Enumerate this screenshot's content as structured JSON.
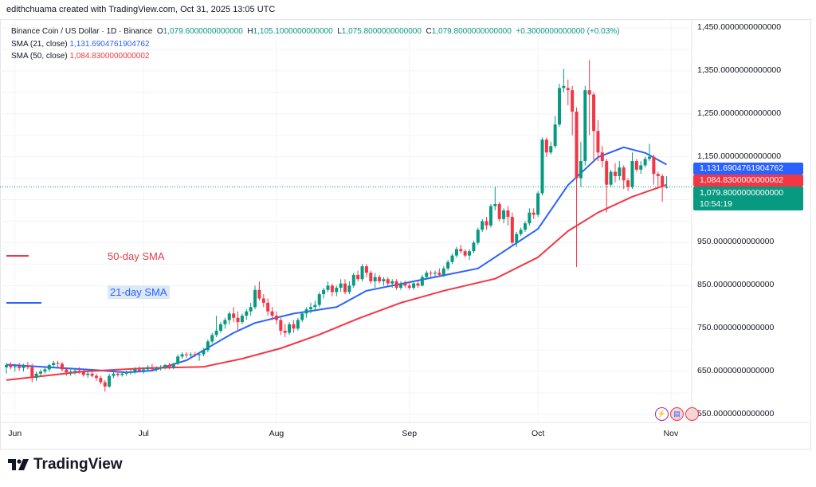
{
  "credit": "edithchuama created with TradingView.com, Oct 31, 2025 13:05 UTC",
  "legend": {
    "symbol": "Binance Coin / US Dollar · 1D · Binance",
    "o_label": "O",
    "o": "1,079.6000000000000",
    "h_label": "H",
    "h": "1,105.1000000000000",
    "l_label": "L",
    "l": "1,075.8000000000000",
    "c_label": "C",
    "c": "1,079.8000000000000",
    "change": "+0.3000000000000 (+0.03%)",
    "sma21_label": "SMA (21, close)",
    "sma21_value": "1,131.6904761904762",
    "sma50_label": "SMA (50, close)",
    "sma50_value": "1,084.8300000000002"
  },
  "annotations": {
    "sma50": "50-day SMA",
    "sma21": "21-day SMA"
  },
  "price_labels": {
    "sma21": "1,131.6904761904762",
    "sma50": "1,084.8300000000002",
    "last": "1,079.8000000000000",
    "countdown": "10:54:19"
  },
  "footer": {
    "brand": "TradingView"
  },
  "colors": {
    "up": "#089981",
    "down": "#f23645",
    "sma21": "#2962ff",
    "sma50": "#f23645"
  },
  "chart_data": {
    "type": "candlestick",
    "ylim": [
      520,
      1480
    ],
    "y_ticks": [
      {
        "v": 1450,
        "label": "1,450.0000000000000"
      },
      {
        "v": 1350,
        "label": "1,350.0000000000000"
      },
      {
        "v": 1250,
        "label": "1,250.0000000000000"
      },
      {
        "v": 1150,
        "label": "1,150.0000000000000"
      },
      {
        "v": 950,
        "label": "950.0000000000000"
      },
      {
        "v": 850,
        "label": "850.0000000000000"
      },
      {
        "v": 750,
        "label": "750.0000000000000"
      },
      {
        "v": 650,
        "label": "650.0000000000000"
      },
      {
        "v": 550,
        "label": "550.0000000000000"
      }
    ],
    "x_ticks": [
      {
        "date": "2025-06-01",
        "label": "Jun"
      },
      {
        "date": "2025-07-01",
        "label": "Jul"
      },
      {
        "date": "2025-08-01",
        "label": "Aug"
      },
      {
        "date": "2025-09-01",
        "label": "Sep"
      },
      {
        "date": "2025-10-01",
        "label": "Oct"
      },
      {
        "date": "2025-11-01",
        "label": "Nov"
      }
    ],
    "start_date": "2025-05-30",
    "ohlc": [
      [
        660,
        670,
        645,
        665
      ],
      [
        665,
        672,
        655,
        660
      ],
      [
        660,
        668,
        650,
        662
      ],
      [
        662,
        670,
        652,
        658
      ],
      [
        658,
        668,
        650,
        664
      ],
      [
        664,
        672,
        655,
        660
      ],
      [
        660,
        668,
        625,
        635
      ],
      [
        635,
        650,
        628,
        645
      ],
      [
        645,
        655,
        640,
        650
      ],
      [
        650,
        660,
        645,
        655
      ],
      [
        655,
        668,
        650,
        665
      ],
      [
        665,
        675,
        658,
        670
      ],
      [
        670,
        675,
        660,
        668
      ],
      [
        668,
        672,
        650,
        655
      ],
      [
        655,
        660,
        640,
        648
      ],
      [
        648,
        655,
        640,
        650
      ],
      [
        650,
        656,
        642,
        652
      ],
      [
        652,
        660,
        645,
        650
      ],
      [
        650,
        655,
        638,
        642
      ],
      [
        642,
        650,
        635,
        645
      ],
      [
        645,
        650,
        636,
        640
      ],
      [
        640,
        645,
        628,
        635
      ],
      [
        635,
        640,
        620,
        625
      ],
      [
        625,
        630,
        603,
        615
      ],
      [
        615,
        645,
        612,
        640
      ],
      [
        640,
        650,
        635,
        645
      ],
      [
        645,
        650,
        638,
        642
      ],
      [
        642,
        648,
        638,
        645
      ],
      [
        645,
        652,
        640,
        648
      ],
      [
        648,
        655,
        642,
        650
      ],
      [
        650,
        660,
        645,
        655
      ],
      [
        655,
        662,
        648,
        652
      ],
      [
        652,
        660,
        645,
        655
      ],
      [
        655,
        665,
        650,
        660
      ],
      [
        660,
        668,
        652,
        655
      ],
      [
        655,
        662,
        650,
        658
      ],
      [
        658,
        665,
        652,
        660
      ],
      [
        660,
        668,
        655,
        665
      ],
      [
        665,
        670,
        655,
        660
      ],
      [
        660,
        670,
        655,
        668
      ],
      [
        668,
        690,
        665,
        685
      ],
      [
        685,
        695,
        680,
        690
      ],
      [
        690,
        695,
        682,
        688
      ],
      [
        688,
        695,
        683,
        690
      ],
      [
        690,
        696,
        684,
        689
      ],
      [
        689,
        692,
        675,
        690
      ],
      [
        690,
        705,
        685,
        700
      ],
      [
        700,
        725,
        695,
        720
      ],
      [
        720,
        740,
        715,
        735
      ],
      [
        735,
        780,
        730,
        745
      ],
      [
        745,
        765,
        740,
        760
      ],
      [
        760,
        775,
        750,
        770
      ],
      [
        770,
        790,
        760,
        785
      ],
      [
        785,
        800,
        765,
        775
      ],
      [
        775,
        790,
        745,
        765
      ],
      [
        765,
        785,
        760,
        780
      ],
      [
        780,
        795,
        770,
        790
      ],
      [
        790,
        810,
        780,
        800
      ],
      [
        800,
        850,
        795,
        840
      ],
      [
        840,
        860,
        815,
        820
      ],
      [
        820,
        830,
        800,
        810
      ],
      [
        810,
        820,
        780,
        790
      ],
      [
        790,
        800,
        770,
        780
      ],
      [
        780,
        790,
        760,
        770
      ],
      [
        770,
        775,
        735,
        745
      ],
      [
        745,
        760,
        730,
        740
      ],
      [
        740,
        765,
        735,
        760
      ],
      [
        760,
        770,
        740,
        750
      ],
      [
        750,
        775,
        745,
        770
      ],
      [
        770,
        790,
        765,
        785
      ],
      [
        785,
        800,
        775,
        795
      ],
      [
        795,
        810,
        785,
        800
      ],
      [
        800,
        815,
        790,
        805
      ],
      [
        805,
        835,
        800,
        830
      ],
      [
        830,
        845,
        820,
        840
      ],
      [
        840,
        860,
        835,
        850
      ],
      [
        850,
        855,
        825,
        835
      ],
      [
        835,
        850,
        825,
        845
      ],
      [
        845,
        865,
        835,
        855
      ],
      [
        855,
        865,
        830,
        835
      ],
      [
        835,
        860,
        830,
        850
      ],
      [
        850,
        880,
        845,
        875
      ],
      [
        875,
        885,
        860,
        865
      ],
      [
        865,
        900,
        860,
        895
      ],
      [
        895,
        900,
        870,
        880
      ],
      [
        880,
        885,
        855,
        860
      ],
      [
        860,
        880,
        845,
        870
      ],
      [
        870,
        875,
        855,
        860
      ],
      [
        860,
        870,
        850,
        865
      ],
      [
        865,
        870,
        850,
        855
      ],
      [
        855,
        865,
        845,
        860
      ],
      [
        860,
        865,
        840,
        845
      ],
      [
        845,
        860,
        840,
        855
      ],
      [
        855,
        862,
        845,
        850
      ],
      [
        850,
        860,
        840,
        845
      ],
      [
        845,
        860,
        840,
        855
      ],
      [
        855,
        860,
        845,
        850
      ],
      [
        850,
        875,
        848,
        870
      ],
      [
        870,
        885,
        865,
        880
      ],
      [
        880,
        885,
        870,
        878
      ],
      [
        878,
        885,
        872,
        880
      ],
      [
        880,
        890,
        870,
        875
      ],
      [
        875,
        895,
        870,
        890
      ],
      [
        890,
        910,
        885,
        905
      ],
      [
        905,
        925,
        900,
        920
      ],
      [
        920,
        940,
        915,
        935
      ],
      [
        935,
        945,
        925,
        930
      ],
      [
        930,
        935,
        915,
        920
      ],
      [
        920,
        935,
        910,
        930
      ],
      [
        930,
        955,
        925,
        950
      ],
      [
        950,
        985,
        945,
        980
      ],
      [
        980,
        1005,
        975,
        1000
      ],
      [
        1000,
        1010,
        980,
        990
      ],
      [
        990,
        1040,
        985,
        1035
      ],
      [
        1035,
        1080,
        1025,
        1040
      ],
      [
        1040,
        1045,
        1000,
        1005
      ],
      [
        1005,
        1030,
        995,
        1025
      ],
      [
        1025,
        1035,
        990,
        1010
      ],
      [
        1010,
        1020,
        945,
        950
      ],
      [
        950,
        975,
        940,
        970
      ],
      [
        970,
        985,
        965,
        980
      ],
      [
        980,
        1000,
        975,
        995
      ],
      [
        995,
        1030,
        990,
        1020
      ],
      [
        1020,
        1030,
        1005,
        1015
      ],
      [
        1015,
        1070,
        1010,
        1065
      ],
      [
        1065,
        1195,
        1060,
        1190
      ],
      [
        1190,
        1195,
        1150,
        1160
      ],
      [
        1160,
        1185,
        1155,
        1175
      ],
      [
        1175,
        1245,
        1170,
        1225
      ],
      [
        1225,
        1320,
        1220,
        1310
      ],
      [
        1310,
        1355,
        1300,
        1315
      ],
      [
        1310,
        1330,
        1270,
        1305
      ],
      [
        1305,
        1315,
        1200,
        1255
      ],
      [
        1255,
        1265,
        893,
        1100
      ],
      [
        1100,
        1185,
        1080,
        1140
      ],
      [
        1140,
        1315,
        1130,
        1305
      ],
      [
        1305,
        1375,
        1200,
        1295
      ],
      [
        1295,
        1300,
        1140,
        1210
      ],
      [
        1210,
        1235,
        1140,
        1160
      ],
      [
        1160,
        1175,
        1125,
        1140
      ],
      [
        1140,
        1145,
        1020,
        1085
      ],
      [
        1085,
        1120,
        1080,
        1115
      ],
      [
        1115,
        1135,
        1090,
        1105
      ],
      [
        1105,
        1140,
        1095,
        1125
      ],
      [
        1125,
        1130,
        1075,
        1095
      ],
      [
        1095,
        1100,
        1070,
        1080
      ],
      [
        1080,
        1160,
        1075,
        1140
      ],
      [
        1140,
        1145,
        1115,
        1120
      ],
      [
        1120,
        1140,
        1110,
        1130
      ],
      [
        1130,
        1150,
        1125,
        1145
      ],
      [
        1145,
        1180,
        1140,
        1150
      ],
      [
        1150,
        1155,
        1085,
        1110
      ],
      [
        1110,
        1115,
        1080,
        1105
      ],
      [
        1105,
        1110,
        1045,
        1080
      ],
      [
        1079.6,
        1105.1,
        1075.8,
        1079.8
      ]
    ],
    "series": [
      {
        "name": "SMA (21, close)",
        "points": [
          [
            "2025-05-30",
            666
          ],
          [
            "2025-06-19",
            654
          ],
          [
            "2025-06-27",
            648
          ],
          [
            "2025-07-03",
            652
          ],
          [
            "2025-07-11",
            676
          ],
          [
            "2025-07-17",
            711
          ],
          [
            "2025-07-22",
            740
          ],
          [
            "2025-07-27",
            763
          ],
          [
            "2025-08-05",
            785
          ],
          [
            "2025-08-15",
            800
          ],
          [
            "2025-08-22",
            838
          ],
          [
            "2025-08-31",
            856
          ],
          [
            "2025-09-07",
            870
          ],
          [
            "2025-09-17",
            890
          ],
          [
            "2025-10-01",
            982
          ],
          [
            "2025-10-08",
            1084
          ],
          [
            "2025-10-15",
            1149
          ],
          [
            "2025-10-21",
            1172
          ],
          [
            "2025-10-26",
            1159
          ],
          [
            "2025-10-31",
            1131.69
          ]
        ]
      },
      {
        "name": "SMA (50, close)",
        "points": [
          [
            "2025-05-30",
            630
          ],
          [
            "2025-06-17",
            650
          ],
          [
            "2025-07-02",
            658
          ],
          [
            "2025-07-15",
            661
          ],
          [
            "2025-07-24",
            680
          ],
          [
            "2025-08-02",
            704
          ],
          [
            "2025-08-11",
            736
          ],
          [
            "2025-08-20",
            773
          ],
          [
            "2025-08-30",
            810
          ],
          [
            "2025-09-09",
            838
          ],
          [
            "2025-09-21",
            866
          ],
          [
            "2025-10-01",
            916
          ],
          [
            "2025-10-08",
            977
          ],
          [
            "2025-10-15",
            1020
          ],
          [
            "2025-10-23",
            1057
          ],
          [
            "2025-10-31",
            1084.83
          ]
        ]
      }
    ],
    "last_price": 1079.8,
    "grid": true
  }
}
